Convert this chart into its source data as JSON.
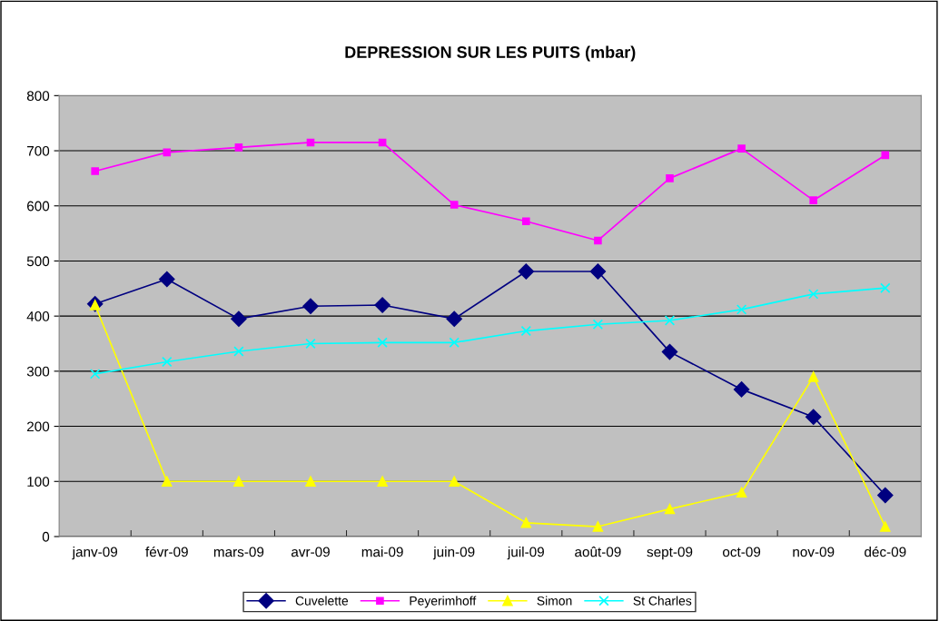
{
  "chart_data": {
    "type": "line",
    "title": "DEPRESSION SUR LES PUITS (mbar)",
    "categories": [
      "janv-09",
      "févr-09",
      "mars-09",
      "avr-09",
      "mai-09",
      "juin-09",
      "juil-09",
      "août-09",
      "sept-09",
      "oct-09",
      "nov-09",
      "déc-09"
    ],
    "series": [
      {
        "name": "Cuvelette",
        "color": "#000080",
        "marker": "diamond",
        "values": [
          422,
          467,
          395,
          418,
          420,
          395,
          481,
          481,
          335,
          267,
          217,
          75
        ]
      },
      {
        "name": "Peyerimhoff",
        "color": "#ff00ff",
        "marker": "square",
        "values": [
          663,
          697,
          706,
          715,
          715,
          602,
          572,
          537,
          650,
          704,
          610,
          692
        ]
      },
      {
        "name": "Simon",
        "color": "#ffff00",
        "marker": "triangle",
        "values": [
          420,
          100,
          100,
          100,
          100,
          100,
          25,
          18,
          50,
          80,
          290,
          18
        ]
      },
      {
        "name": "St Charles",
        "color": "#00ffff",
        "marker": "cross",
        "values": [
          295,
          317,
          336,
          350,
          352,
          352,
          373,
          385,
          392,
          412,
          440,
          451
        ]
      }
    ],
    "ylim": [
      0,
      800
    ],
    "yticks": [
      0,
      100,
      200,
      300,
      400,
      500,
      600,
      700,
      800
    ],
    "grid": "y",
    "legend": "bottom",
    "line_style": "solid"
  }
}
